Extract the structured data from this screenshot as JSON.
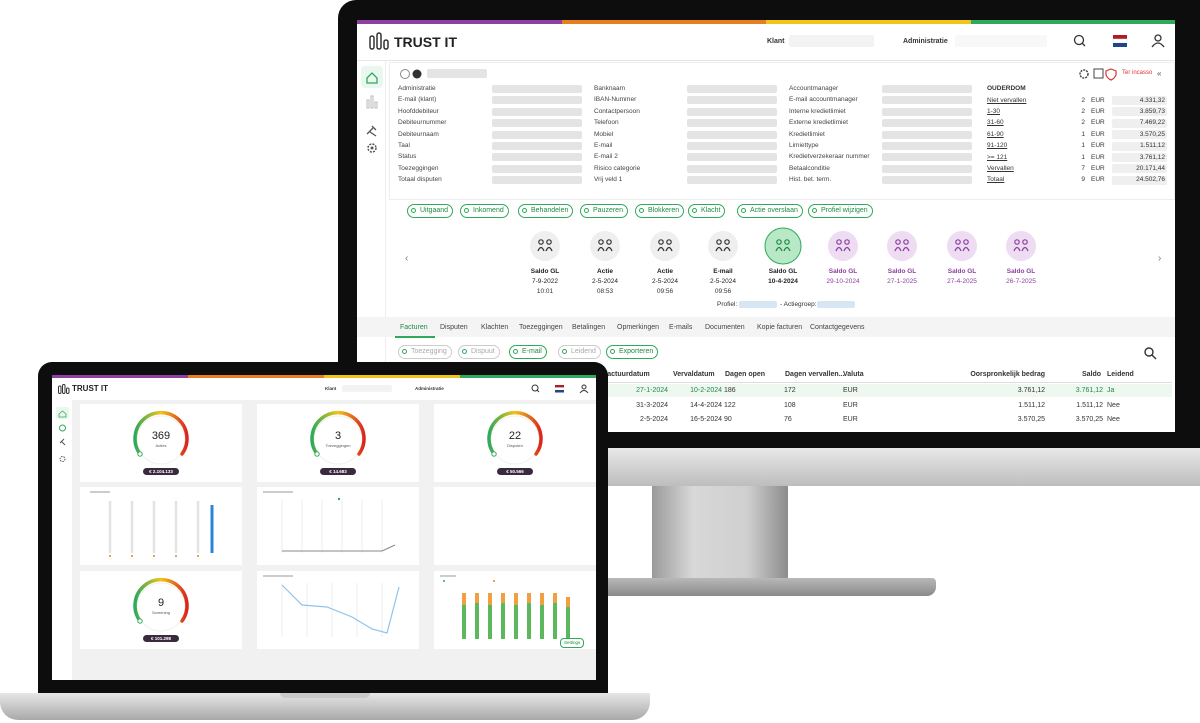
{
  "monitor": {
    "brand": "TRUST IT",
    "header": {
      "klant": "Klant",
      "administratie": "Administratie"
    },
    "details": {
      "columns": [
        [
          "Administratie",
          "E-mail (klant)",
          "Hoofddebiteur",
          "Debiteurnummer",
          "Debiteurnaam",
          "Taal",
          "Status",
          "Toezeggingen",
          "Totaal disputen"
        ],
        [
          "Banknaam",
          "IBAN-Nummer",
          "Contactpersoon",
          "Telefoon",
          "Mobiel",
          "E-mail",
          "E-mail 2",
          "Risico categorie",
          "Vrij veld 1"
        ],
        [
          "Accountmanager",
          "E-mail accountmanager",
          "Interne kredietlimiet",
          "Externe kredietlimiet",
          "Kredietlimiet",
          "Limiettype",
          "Kredietverzekeraar nummer",
          "Betaalconditie",
          "Hist. bet. term."
        ]
      ]
    },
    "ouderdom": {
      "title": "OUDERDOM",
      "rows": [
        [
          "Niet vervallen",
          "2",
          "EUR",
          "4.331,32"
        ],
        [
          "1-30",
          "2",
          "EUR",
          "3.859,73"
        ],
        [
          "31-60",
          "2",
          "EUR",
          "7.469,22"
        ],
        [
          "61-90",
          "1",
          "EUR",
          "3.570,25"
        ],
        [
          "91-120",
          "1",
          "EUR",
          "1.511,12"
        ],
        [
          ">= 121",
          "1",
          "EUR",
          "3.761,12"
        ],
        [
          "Vervallen",
          "7",
          "EUR",
          "20.171,44"
        ],
        [
          "Totaal",
          "9",
          "EUR",
          "24.502,76"
        ]
      ]
    },
    "status": "Ter incasso",
    "actions": [
      "Uitgaand",
      "Inkomend",
      "Behandelen",
      "Pauzeren",
      "Blokkeren",
      "Klacht",
      "Actie overslaan",
      "Profiel wijzigen"
    ],
    "timeline": [
      {
        "title": "Saldo GL",
        "date": "7-9-2022",
        "time": "10:01",
        "state": "past"
      },
      {
        "title": "Actie",
        "date": "2-5-2024",
        "time": "08:53",
        "state": "past"
      },
      {
        "title": "Actie",
        "date": "2-5-2024",
        "time": "09:56",
        "state": "past"
      },
      {
        "title": "E-mail",
        "date": "2-5-2024",
        "time": "09:56",
        "state": "past"
      },
      {
        "title": "Saldo GL",
        "date": "10-4-2024",
        "state": "current"
      },
      {
        "title": "Saldo GL",
        "date": "29-10-2024",
        "state": "future"
      },
      {
        "title": "Saldo GL",
        "date": "27-1-2025",
        "state": "future"
      },
      {
        "title": "Saldo GL",
        "date": "27-4-2025",
        "state": "future"
      },
      {
        "title": "Saldo GL",
        "date": "26-7-2025",
        "state": "future"
      }
    ],
    "profile": {
      "profiel": "Profiel:",
      "actiegroep": "- Actiegroep:"
    },
    "tabs": [
      "Facturen",
      "Disputen",
      "Klachten",
      "Toezeggingen",
      "Betalingen",
      "Opmerkingen",
      "E-mails",
      "Documenten",
      "Kopie facturen",
      "Contactgegevens"
    ],
    "buttons": [
      "Toezegging",
      "Dispuut",
      "E-mail",
      "Leidend",
      "Exporteren"
    ],
    "table": {
      "headers": [
        "Factuurdatum",
        "Vervaldatum",
        "Dagen open",
        "Dagen vervallen...",
        "Valuta",
        "Oorspronkelijk bedrag",
        "Saldo",
        "Leidend"
      ],
      "rows": [
        [
          "27-1-2024",
          "10-2-2024",
          "186",
          "172",
          "EUR",
          "3.761,12",
          "3.761,12",
          "Ja"
        ],
        [
          "31-3-2024",
          "14-4-2024",
          "122",
          "108",
          "EUR",
          "1.511,12",
          "1.511,12",
          "Nee"
        ],
        [
          "2-5-2024",
          "16-5-2024",
          "90",
          "76",
          "EUR",
          "3.570,25",
          "3.570,25",
          "Nee"
        ]
      ]
    }
  },
  "laptop": {
    "brand": "TRUST IT",
    "header": {
      "klant": "Klant",
      "administratie": "Administratie"
    },
    "gauges": [
      {
        "value": 369,
        "label": "Acties",
        "amount": "€ 2.104.133"
      },
      {
        "value": 3,
        "label": "Toezeggingen",
        "amount": "€ 14.683"
      },
      {
        "value": 22,
        "label": "Disputen",
        "amount": "€ 50.566"
      },
      {
        "value": 9,
        "label": "Screening",
        "amount": "€ 101.298"
      }
    ],
    "settings": "Settings"
  }
}
